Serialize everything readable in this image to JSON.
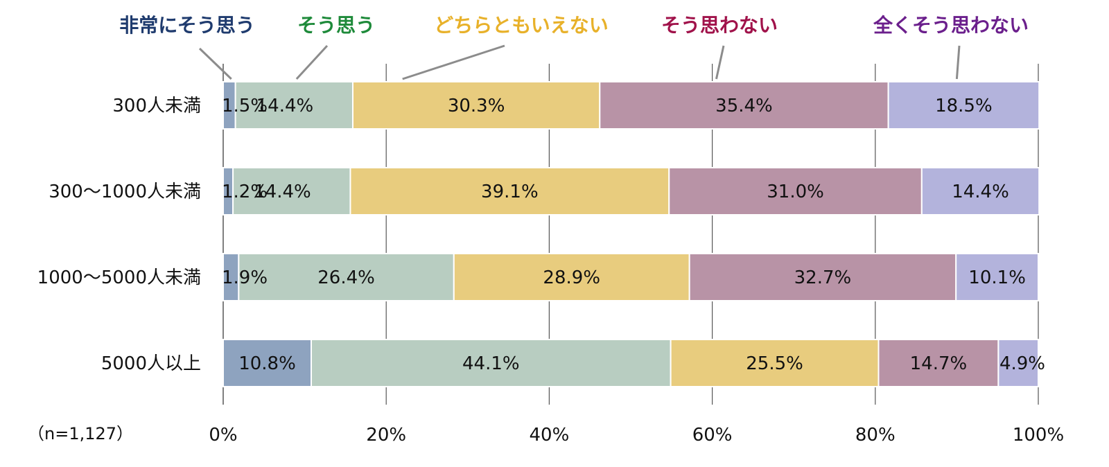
{
  "chart_data": {
    "type": "bar",
    "orientation": "horizontal",
    "stacked": true,
    "percent": true,
    "categories": [
      "300人未満",
      "300～1000人未満",
      "1000～5000人未満",
      "5000人以上"
    ],
    "series": [
      {
        "name": "非常にそう思う",
        "values": [
          1.5,
          1.2,
          1.9,
          10.8
        ],
        "labels": [
          "1.5%",
          "1.2%",
          "1.9%",
          "10.8%"
        ],
        "color": "#8ea3bf",
        "label_color": "#1f3b6e"
      },
      {
        "name": "そう思う",
        "values": [
          14.4,
          14.4,
          26.4,
          44.1
        ],
        "labels": [
          "14.4%",
          "14.4%",
          "26.4%",
          "44.1%"
        ],
        "color": "#b8cdc1",
        "label_color": "#1e8a3a"
      },
      {
        "name": "どちらともいえない",
        "values": [
          30.3,
          39.1,
          28.9,
          25.5
        ],
        "labels": [
          "30.3%",
          "39.1%",
          "28.9%",
          "25.5%"
        ],
        "color": "#e8cc7e",
        "label_color": "#e8b12a"
      },
      {
        "name": "そう思わない",
        "values": [
          35.4,
          31.0,
          32.7,
          14.7
        ],
        "labels": [
          "35.4%",
          "31.0%",
          "32.7%",
          "14.7%"
        ],
        "color": "#b893a6",
        "label_color": "#a0124a"
      },
      {
        "name": "全くそう思わない",
        "values": [
          18.5,
          14.4,
          10.1,
          4.9
        ],
        "labels": [
          "18.5%",
          "14.4%",
          "10.1%",
          "4.9%"
        ],
        "color": "#b3b3dc",
        "label_color": "#6b1f8c"
      }
    ],
    "xlim": [
      0,
      100
    ],
    "xticks": [
      "0%",
      "20%",
      "40%",
      "60%",
      "80%",
      "100%"
    ],
    "grid": true,
    "legend_position": "top",
    "note": "（n=1,127）"
  }
}
